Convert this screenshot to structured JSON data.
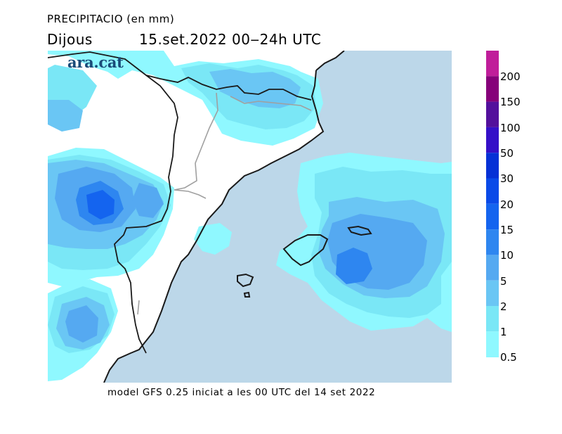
{
  "header": {
    "title": "PRECIPITACIO (en mm)",
    "day": "Dijous",
    "date": "15.set.2022 00‒24h UTC"
  },
  "logo": {
    "text": "ara.cat",
    "color": "#1a4b78"
  },
  "footer": {
    "text": "model GFS 0.25 iniciat a les 00 UTC del 14 set 2022"
  },
  "map": {
    "sea_color": "#bcd7e9",
    "land_color": "#ffffff",
    "coast_color": "#1a1a1a",
    "border_color": "#a0a0a0"
  },
  "legend": {
    "unit": "mm",
    "levels": [
      "0.5",
      "1",
      "2",
      "5",
      "10",
      "15",
      "20",
      "30",
      "50",
      "100",
      "150",
      "200"
    ],
    "colors": [
      "#8ff8ff",
      "#7ae7f6",
      "#6ac6f4",
      "#55a9f1",
      "#2e86f0",
      "#1464ef",
      "#0a4ae8",
      "#0631d6",
      "#3510c8",
      "#53109c",
      "#86007a",
      "#c01e9a",
      "#dd3ab8"
    ]
  }
}
